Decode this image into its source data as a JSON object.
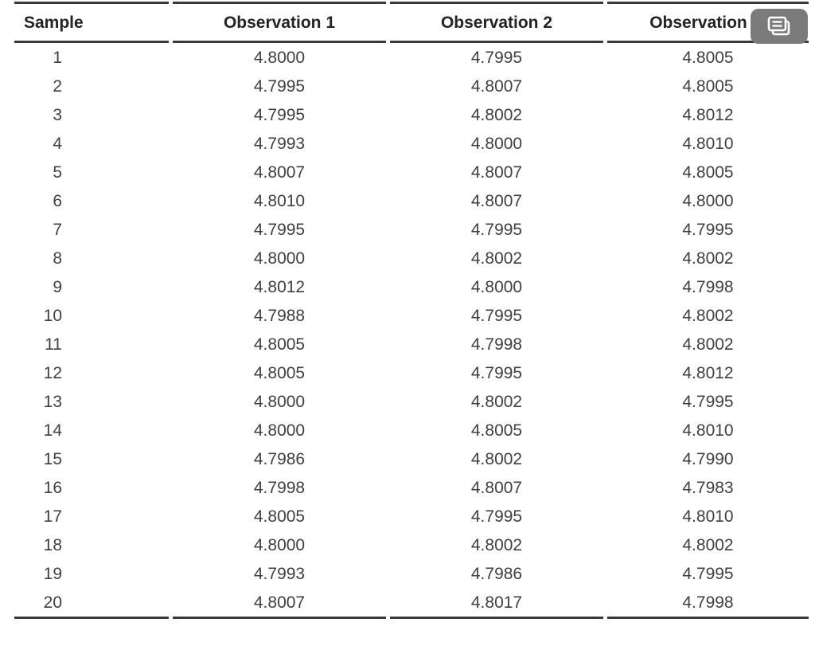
{
  "chart_data": {
    "type": "table",
    "title": "",
    "columns": [
      "Sample",
      "Observation 1",
      "Observation 2",
      "Observation"
    ],
    "rows": [
      [
        "1",
        "4.8000",
        "4.7995",
        "4.8005"
      ],
      [
        "2",
        "4.7995",
        "4.8007",
        "4.8005"
      ],
      [
        "3",
        "4.7995",
        "4.8002",
        "4.8012"
      ],
      [
        "4",
        "4.7993",
        "4.8000",
        "4.8010"
      ],
      [
        "5",
        "4.8007",
        "4.8007",
        "4.8005"
      ],
      [
        "6",
        "4.8010",
        "4.8007",
        "4.8000"
      ],
      [
        "7",
        "4.7995",
        "4.7995",
        "4.7995"
      ],
      [
        "8",
        "4.8000",
        "4.8002",
        "4.8002"
      ],
      [
        "9",
        "4.8012",
        "4.8000",
        "4.7998"
      ],
      [
        "10",
        "4.7988",
        "4.7995",
        "4.8002"
      ],
      [
        "11",
        "4.8005",
        "4.7998",
        "4.8002"
      ],
      [
        "12",
        "4.8005",
        "4.7995",
        "4.8012"
      ],
      [
        "13",
        "4.8000",
        "4.8002",
        "4.7995"
      ],
      [
        "14",
        "4.8000",
        "4.8005",
        "4.8010"
      ],
      [
        "15",
        "4.7986",
        "4.8002",
        "4.7990"
      ],
      [
        "16",
        "4.7998",
        "4.8007",
        "4.7983"
      ],
      [
        "17",
        "4.8005",
        "4.7995",
        "4.8010"
      ],
      [
        "18",
        "4.8000",
        "4.8002",
        "4.8002"
      ],
      [
        "19",
        "4.7993",
        "4.7986",
        "4.7995"
      ],
      [
        "20",
        "4.8007",
        "4.8017",
        "4.7998"
      ]
    ],
    "layout": {
      "grid": "horizontal-rules-only",
      "legend": "none"
    }
  },
  "toolbar": {
    "copy_button_icon": "copy-icon"
  },
  "colors": {
    "background": "#ffffff",
    "rule": "#3a3a3a",
    "header_text": "#232323",
    "body_text": "#404040",
    "button_bg": "#7b7b7b",
    "button_icon": "#ffffff"
  }
}
